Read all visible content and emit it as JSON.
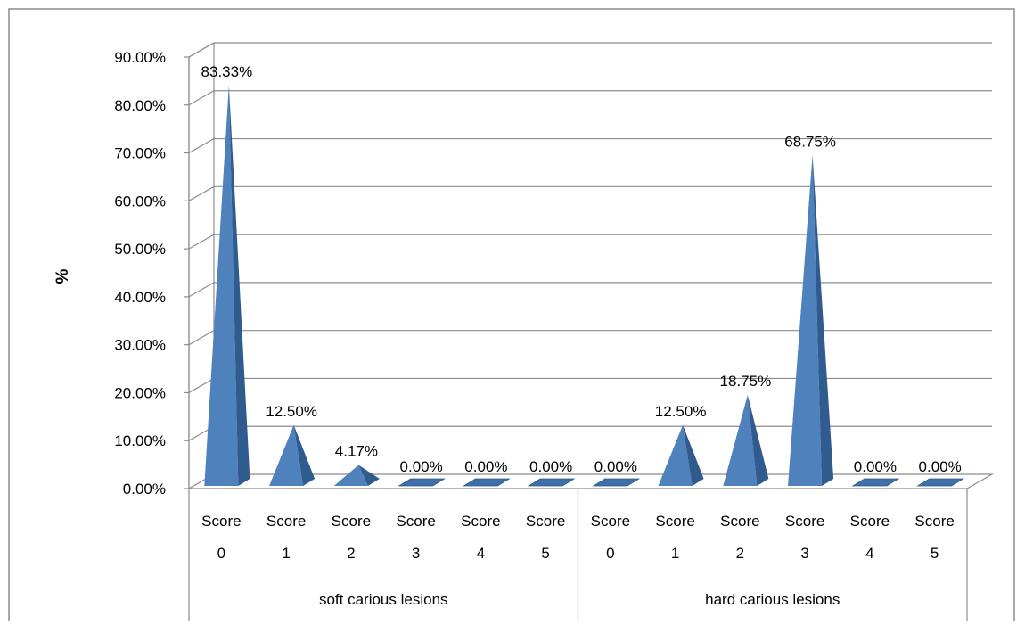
{
  "chart_data": {
    "type": "bar",
    "style": "3d-pyramid",
    "ylabel": "%",
    "xlabel": "",
    "title": "",
    "ylim": [
      0,
      90
    ],
    "yticks": [
      "0.00%",
      "10.00%",
      "20.00%",
      "30.00%",
      "40.00%",
      "50.00%",
      "60.00%",
      "70.00%",
      "80.00%",
      "90.00%"
    ],
    "grid": true,
    "legend": "none",
    "bar_color": "#4f81bd",
    "groups": [
      {
        "name": "soft carious lesions",
        "categories": [
          [
            "Score",
            "0"
          ],
          [
            "Score",
            "1"
          ],
          [
            "Score",
            "2"
          ],
          [
            "Score",
            "3"
          ],
          [
            "Score",
            "4"
          ],
          [
            "Score",
            "5"
          ]
        ],
        "values": [
          83.33,
          12.5,
          4.17,
          0,
          0,
          0
        ],
        "labels": [
          "83.33%",
          "12.50%",
          "4.17%",
          "0.00%",
          "0.00%",
          "0.00%"
        ]
      },
      {
        "name": "hard carious lesions",
        "categories": [
          [
            "Score",
            "0"
          ],
          [
            "Score",
            "1"
          ],
          [
            "Score",
            "2"
          ],
          [
            "Score",
            "3"
          ],
          [
            "Score",
            "4"
          ],
          [
            "Score",
            "5"
          ]
        ],
        "values": [
          0,
          12.5,
          18.75,
          68.75,
          0,
          0
        ],
        "labels": [
          "0.00%",
          "12.50%",
          "18.75%",
          "68.75%",
          "0.00%",
          "0.00%"
        ]
      }
    ]
  }
}
